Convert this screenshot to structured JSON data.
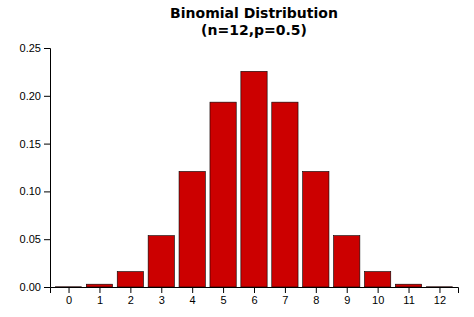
{
  "chart_data": {
    "type": "bar",
    "title": "Binomial Distribution\n(n=12,p=0.5)",
    "x": [
      0,
      1,
      2,
      3,
      4,
      5,
      6,
      7,
      8,
      9,
      10,
      11,
      12
    ],
    "values": [
      0.000244140625,
      0.0029296875,
      0.01611328125,
      0.0537109375,
      0.120849609375,
      0.193359375,
      0.2255859375,
      0.193359375,
      0.120849609375,
      0.0537109375,
      0.01611328125,
      0.0029296875,
      0.000244140625
    ],
    "color": "#CC0000",
    "xlim": [
      -0.6,
      12.6
    ],
    "xticks": [
      0,
      1,
      2,
      3,
      4,
      5,
      6,
      7,
      8,
      9,
      10,
      11,
      12
    ],
    "ylim": [
      0,
      0.25
    ],
    "yticks": [
      {
        "value": 0,
        "label": "0.00"
      },
      {
        "value": 0.05,
        "label": "0.05"
      },
      {
        "value": 0.1,
        "label": "0.10"
      },
      {
        "value": 0.15,
        "label": "0.15"
      },
      {
        "value": 0.2,
        "label": "0.20"
      },
      {
        "value": 0.25,
        "label": "0.25"
      }
    ],
    "grid": false
  }
}
